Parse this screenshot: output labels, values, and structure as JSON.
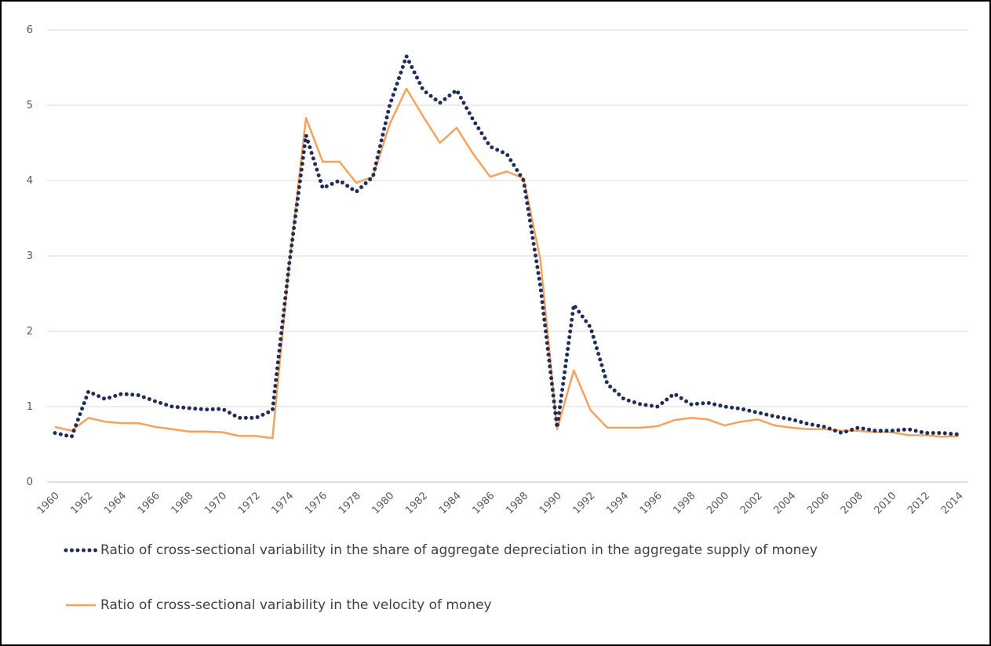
{
  "chart_data": {
    "type": "line",
    "categories": [
      "1960",
      null,
      "1962",
      null,
      "1964",
      null,
      "1966",
      null,
      "1968",
      null,
      "1970",
      null,
      "1972",
      null,
      "1974",
      null,
      "1976",
      null,
      "1978",
      null,
      "1980",
      null,
      "1982",
      null,
      "1984",
      null,
      "1986",
      null,
      "1988",
      null,
      "1990",
      null,
      "1992",
      null,
      "1994",
      null,
      "1996",
      null,
      "1998",
      null,
      "2000",
      null,
      "2002",
      null,
      "2004",
      null,
      "2006",
      null,
      "2008",
      null,
      "2010",
      null,
      "2012",
      null,
      "2014"
    ],
    "series": [
      {
        "name": "Ratio of cross-sectional variability in the share of aggregate depreciation in the aggregate supply of money",
        "color": "#1f2d5a",
        "style": "dotted",
        "values": [
          0.65,
          0.6,
          1.2,
          1.1,
          1.17,
          1.15,
          1.07,
          1.0,
          0.98,
          0.96,
          0.97,
          0.85,
          0.85,
          0.95,
          2.9,
          4.6,
          3.9,
          4.0,
          3.85,
          4.05,
          5.0,
          5.65,
          5.2,
          5.03,
          5.2,
          4.8,
          4.45,
          4.35,
          4.0,
          2.6,
          0.72,
          2.35,
          2.05,
          1.3,
          1.1,
          1.03,
          1.0,
          1.17,
          1.03,
          1.05,
          1.0,
          0.97,
          0.92,
          0.87,
          0.83,
          0.77,
          0.73,
          0.65,
          0.72,
          0.68,
          0.68,
          0.7,
          0.65,
          0.65,
          0.63
        ]
      },
      {
        "name": "Ratio of cross-sectional variability in the velocity of money",
        "color": "#f5a25d",
        "style": "solid",
        "values": [
          0.73,
          0.68,
          0.85,
          0.8,
          0.78,
          0.78,
          0.73,
          0.7,
          0.67,
          0.67,
          0.66,
          0.61,
          0.61,
          0.58,
          2.9,
          4.83,
          4.25,
          4.25,
          3.97,
          4.05,
          4.75,
          5.22,
          4.85,
          4.5,
          4.7,
          4.35,
          4.05,
          4.12,
          4.03,
          2.95,
          0.7,
          1.48,
          0.95,
          0.72,
          0.72,
          0.72,
          0.74,
          0.82,
          0.85,
          0.83,
          0.75,
          0.8,
          0.83,
          0.75,
          0.72,
          0.7,
          0.7,
          0.68,
          0.68,
          0.66,
          0.66,
          0.62,
          0.62,
          0.6,
          0.61
        ]
      }
    ],
    "ylim": [
      0,
      6
    ],
    "yticks": [
      0,
      1,
      2,
      3,
      4,
      5,
      6
    ],
    "grid": true,
    "legend": "bottom"
  }
}
